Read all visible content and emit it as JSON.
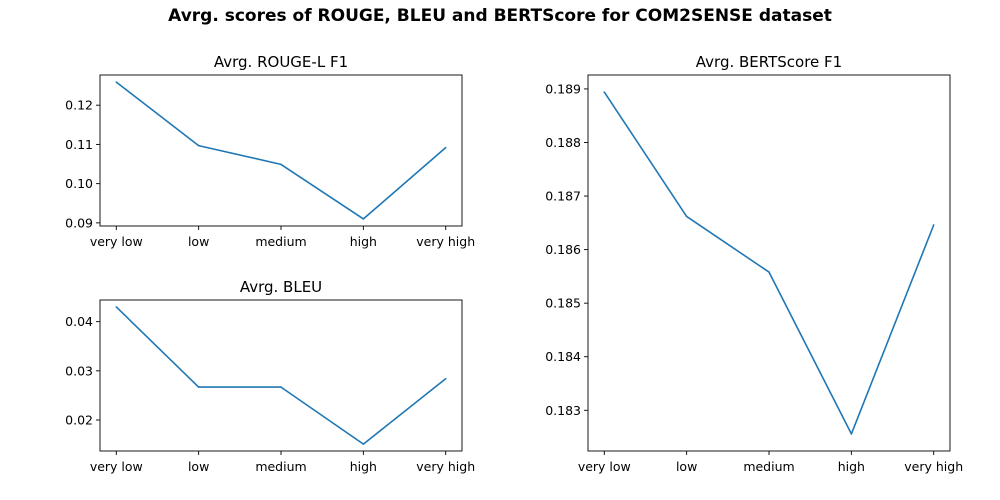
{
  "figure": {
    "title": "Avrg. scores of ROUGE, BLEU and BERTScore for COM2SENSE dataset",
    "line_color": "#1f77b4"
  },
  "chart_data": [
    {
      "id": "rouge",
      "type": "line",
      "title": "Avrg. ROUGE-L F1",
      "categories": [
        "very low",
        "low",
        "medium",
        "high",
        "very high"
      ],
      "values": [
        0.1259,
        0.1097,
        0.1049,
        0.091,
        0.1092
      ],
      "ylim": [
        0.0892,
        0.1277
      ],
      "yticks": [
        0.09,
        0.1,
        0.11,
        0.12
      ],
      "ytick_labels": [
        "0.09",
        "0.10",
        "0.11",
        "0.12"
      ],
      "xlabel": "",
      "ylabel": "",
      "grid": false
    },
    {
      "id": "bleu",
      "type": "line",
      "title": "Avrg. BLEU",
      "categories": [
        "very low",
        "low",
        "medium",
        "high",
        "very high"
      ],
      "values": [
        0.043,
        0.0267,
        0.0267,
        0.0151,
        0.0284
      ],
      "ylim": [
        0.0137,
        0.0444
      ],
      "yticks": [
        0.02,
        0.03,
        0.04
      ],
      "ytick_labels": [
        "0.02",
        "0.03",
        "0.04"
      ],
      "xlabel": "",
      "ylabel": "",
      "grid": false
    },
    {
      "id": "bert",
      "type": "line",
      "title": "Avrg. BERTScore F1",
      "categories": [
        "very low",
        "low",
        "medium",
        "high",
        "very high"
      ],
      "values": [
        0.18894,
        0.18662,
        0.18558,
        0.18256,
        0.18646
      ],
      "ylim": [
        0.18224,
        0.18926
      ],
      "yticks": [
        0.183,
        0.184,
        0.185,
        0.186,
        0.187,
        0.188,
        0.189
      ],
      "ytick_labels": [
        "0.183",
        "0.184",
        "0.185",
        "0.186",
        "0.187",
        "0.188",
        "0.189"
      ],
      "xlabel": "",
      "ylabel": "",
      "grid": false
    }
  ]
}
